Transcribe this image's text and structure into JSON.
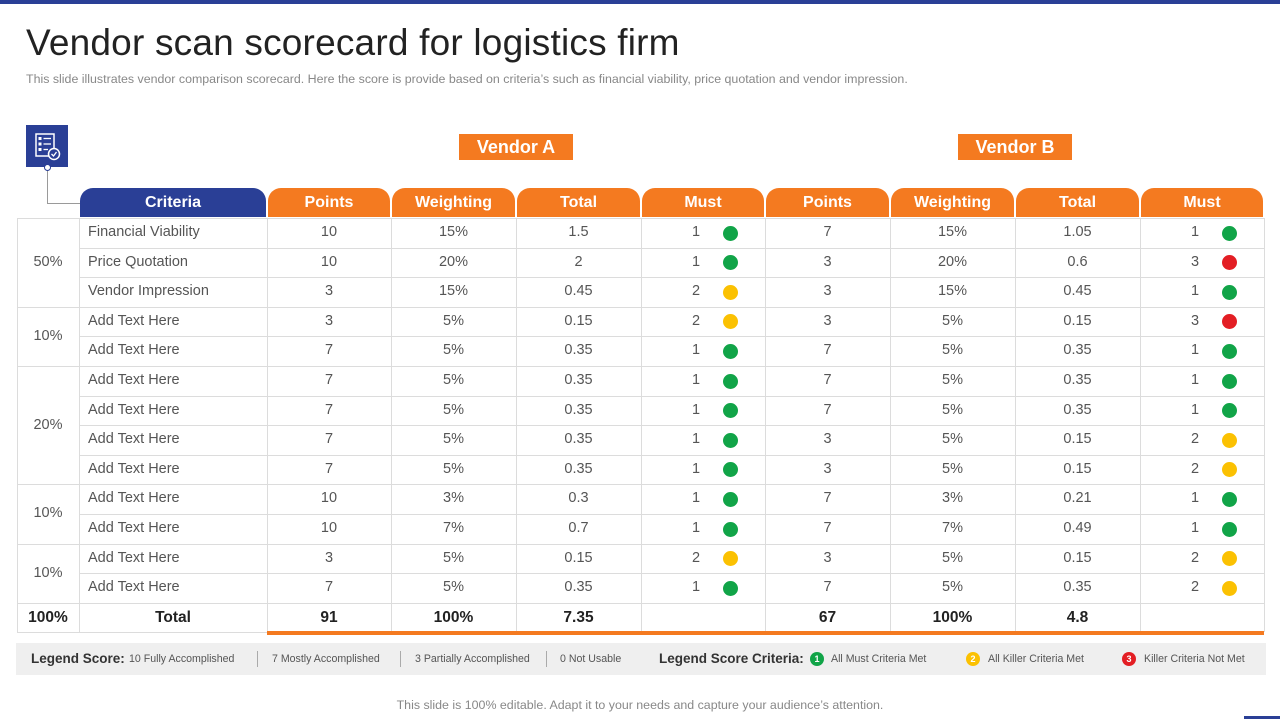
{
  "title": "Vendor scan scorecard for logistics firm",
  "subtitle": "This slide illustrates vendor  comparison scorecard. Here the score is provide  based on criteria’s such as financial viability, price quotation and vendor  impression.",
  "vendors": [
    "Vendor A",
    "Vendor B"
  ],
  "headers": {
    "criteria": "Criteria",
    "vendor_a": [
      "Points",
      "Weighting",
      "Total",
      "Must"
    ],
    "vendor_b": [
      "Points",
      "Weighting",
      "Total",
      "Must"
    ]
  },
  "colors": {
    "blue": "#2a3f96",
    "orange": "#f47a20",
    "green": "#11a448",
    "yellow": "#fbc102",
    "red": "#e31e24"
  },
  "groups": [
    {
      "weight": "50%",
      "rows": 3
    },
    {
      "weight": "10%",
      "rows": 2
    },
    {
      "weight": "20%",
      "rows": 4
    },
    {
      "weight": "10%",
      "rows": 2
    },
    {
      "weight": "10%",
      "rows": 2
    }
  ],
  "rows": [
    {
      "criteria": "Financial Viability",
      "a": [
        "10",
        "15%",
        "1.5",
        "1",
        "green"
      ],
      "b": [
        "7",
        "15%",
        "1.05",
        "1",
        "green"
      ]
    },
    {
      "criteria": "Price Quotation",
      "a": [
        "10",
        "20%",
        "2",
        "1",
        "green"
      ],
      "b": [
        "3",
        "20%",
        "0.6",
        "3",
        "red"
      ]
    },
    {
      "criteria": "Vendor Impression",
      "a": [
        "3",
        "15%",
        "0.45",
        "2",
        "yellow"
      ],
      "b": [
        "3",
        "15%",
        "0.45",
        "1",
        "green"
      ]
    },
    {
      "criteria": "Add Text Here",
      "a": [
        "3",
        "5%",
        "0.15",
        "2",
        "yellow"
      ],
      "b": [
        "3",
        "5%",
        "0.15",
        "3",
        "red"
      ]
    },
    {
      "criteria": "Add Text Here",
      "a": [
        "7",
        "5%",
        "0.35",
        "1",
        "green"
      ],
      "b": [
        "7",
        "5%",
        "0.35",
        "1",
        "green"
      ]
    },
    {
      "criteria": "Add Text Here",
      "a": [
        "7",
        "5%",
        "0.35",
        "1",
        "green"
      ],
      "b": [
        "7",
        "5%",
        "0.35",
        "1",
        "green"
      ]
    },
    {
      "criteria": "Add Text Here",
      "a": [
        "7",
        "5%",
        "0.35",
        "1",
        "green"
      ],
      "b": [
        "7",
        "5%",
        "0.35",
        "1",
        "green"
      ]
    },
    {
      "criteria": "Add Text Here",
      "a": [
        "7",
        "5%",
        "0.35",
        "1",
        "green"
      ],
      "b": [
        "3",
        "5%",
        "0.15",
        "2",
        "yellow"
      ]
    },
    {
      "criteria": "Add Text Here",
      "a": [
        "7",
        "5%",
        "0.35",
        "1",
        "green"
      ],
      "b": [
        "3",
        "5%",
        "0.15",
        "2",
        "yellow"
      ]
    },
    {
      "criteria": "Add Text Here",
      "a": [
        "10",
        "3%",
        "0.3",
        "1",
        "green"
      ],
      "b": [
        "7",
        "3%",
        "0.21",
        "1",
        "green"
      ]
    },
    {
      "criteria": "Add Text Here",
      "a": [
        "10",
        "7%",
        "0.7",
        "1",
        "green"
      ],
      "b": [
        "7",
        "7%",
        "0.49",
        "1",
        "green"
      ]
    },
    {
      "criteria": "Add Text Here",
      "a": [
        "3",
        "5%",
        "0.15",
        "2",
        "yellow"
      ],
      "b": [
        "3",
        "5%",
        "0.15",
        "2",
        "yellow"
      ]
    },
    {
      "criteria": "Add Text Here",
      "a": [
        "7",
        "5%",
        "0.35",
        "1",
        "green"
      ],
      "b": [
        "7",
        "5%",
        "0.35",
        "2",
        "yellow"
      ]
    }
  ],
  "total_row": {
    "weight": "100%",
    "label": "Total",
    "a": [
      "91",
      "100%",
      "7.35",
      ""
    ],
    "b": [
      "67",
      "100%",
      "4.8",
      ""
    ]
  },
  "legend": {
    "score_title": "Legend Score:",
    "score_items": [
      "10 Fully Accomplished",
      "7 Mostly Accomplished",
      "3 Partially Accomplished",
      "0 Not Usable"
    ],
    "criteria_title": "Legend Score Criteria:",
    "criteria_items": [
      {
        "num": "1",
        "label": "All Must Criteria Met",
        "color": "green"
      },
      {
        "num": "2",
        "label": "All Killer Criteria Met",
        "color": "yellow"
      },
      {
        "num": "3",
        "label": "Killer Criteria Not Met",
        "color": "red"
      }
    ]
  },
  "footer": "This slide is 100% editable. Adapt it to your needs and capture your audience’s attention."
}
